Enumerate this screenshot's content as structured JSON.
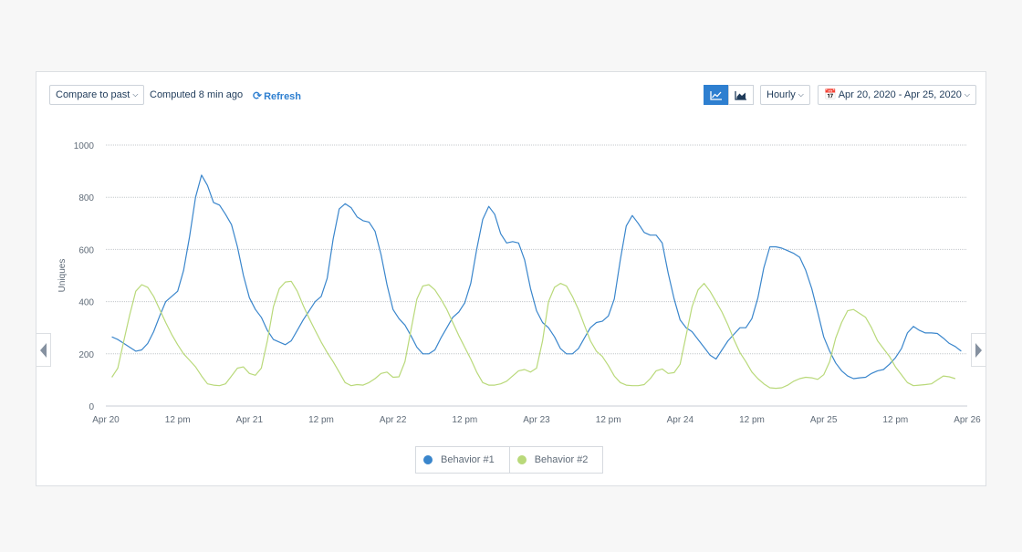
{
  "toolbar": {
    "compare_label": "Compare to past",
    "computed_text": "Computed 8 min ago",
    "refresh_label": "Refresh",
    "interval_label": "Hourly",
    "date_range_label": "Apr 20, 2020 - Apr 25, 2020",
    "active_view": "line",
    "accent_color": "#2e7fd0"
  },
  "icons": {
    "refresh": "refresh-icon",
    "line_chart": "line-chart-icon",
    "area_chart": "area-chart-icon",
    "calendar": "calendar-icon",
    "prev": "chevron-left-icon",
    "next": "chevron-right-icon"
  },
  "chart_data": {
    "type": "line",
    "ylabel": "Uniques",
    "ylim": [
      0,
      1000
    ],
    "yticks": [
      0,
      200,
      400,
      600,
      800,
      1000
    ],
    "x_range_hours": [
      0,
      144
    ],
    "x_tick_labels": [
      "Apr 20",
      "12 pm",
      "Apr 21",
      "12 pm",
      "Apr 22",
      "12 pm",
      "Apr 23",
      "12 pm",
      "Apr 24",
      "12 pm",
      "Apr 25",
      "12 pm",
      "Apr 26"
    ],
    "x_tick_hours": [
      0,
      12,
      24,
      36,
      48,
      60,
      72,
      84,
      96,
      108,
      120,
      132,
      144
    ],
    "grid": true,
    "legend_position": "bottom-center",
    "series": [
      {
        "name": "Behavior #1",
        "color": "#3a86cc",
        "points": [
          [
            1,
            265
          ],
          [
            2,
            255
          ],
          [
            3,
            240
          ],
          [
            4,
            225
          ],
          [
            5,
            210
          ],
          [
            6,
            215
          ],
          [
            7,
            240
          ],
          [
            8,
            285
          ],
          [
            9,
            345
          ],
          [
            10,
            400
          ],
          [
            11,
            420
          ],
          [
            12,
            440
          ],
          [
            13,
            520
          ],
          [
            14,
            650
          ],
          [
            15,
            800
          ],
          [
            16,
            885
          ],
          [
            17,
            845
          ],
          [
            18,
            780
          ],
          [
            19,
            770
          ],
          [
            20,
            735
          ],
          [
            21,
            695
          ],
          [
            22,
            610
          ],
          [
            23,
            500
          ],
          [
            24,
            415
          ],
          [
            25,
            370
          ],
          [
            26,
            340
          ],
          [
            27,
            290
          ],
          [
            28,
            255
          ],
          [
            29,
            245
          ],
          [
            30,
            235
          ],
          [
            31,
            250
          ],
          [
            32,
            290
          ],
          [
            33,
            330
          ],
          [
            34,
            365
          ],
          [
            35,
            400
          ],
          [
            36,
            420
          ],
          [
            37,
            490
          ],
          [
            38,
            640
          ],
          [
            39,
            755
          ],
          [
            40,
            775
          ],
          [
            41,
            760
          ],
          [
            42,
            725
          ],
          [
            43,
            710
          ],
          [
            44,
            705
          ],
          [
            45,
            670
          ],
          [
            46,
            580
          ],
          [
            47,
            465
          ],
          [
            48,
            370
          ],
          [
            49,
            335
          ],
          [
            50,
            310
          ],
          [
            51,
            270
          ],
          [
            52,
            225
          ],
          [
            53,
            200
          ],
          [
            54,
            200
          ],
          [
            55,
            215
          ],
          [
            56,
            260
          ],
          [
            57,
            300
          ],
          [
            58,
            340
          ],
          [
            59,
            360
          ],
          [
            60,
            395
          ],
          [
            61,
            470
          ],
          [
            62,
            600
          ],
          [
            63,
            715
          ],
          [
            64,
            765
          ],
          [
            65,
            735
          ],
          [
            66,
            660
          ],
          [
            67,
            625
          ],
          [
            68,
            630
          ],
          [
            69,
            625
          ],
          [
            70,
            560
          ],
          [
            71,
            450
          ],
          [
            72,
            365
          ],
          [
            73,
            320
          ],
          [
            74,
            300
          ],
          [
            75,
            265
          ],
          [
            76,
            220
          ],
          [
            77,
            200
          ],
          [
            78,
            200
          ],
          [
            79,
            220
          ],
          [
            80,
            260
          ],
          [
            81,
            300
          ],
          [
            82,
            320
          ],
          [
            83,
            325
          ],
          [
            84,
            345
          ],
          [
            85,
            410
          ],
          [
            86,
            560
          ],
          [
            87,
            690
          ],
          [
            88,
            730
          ],
          [
            89,
            700
          ],
          [
            90,
            665
          ],
          [
            91,
            655
          ],
          [
            92,
            655
          ],
          [
            93,
            625
          ],
          [
            94,
            510
          ],
          [
            95,
            410
          ],
          [
            96,
            330
          ],
          [
            97,
            300
          ],
          [
            98,
            285
          ],
          [
            99,
            255
          ],
          [
            100,
            225
          ],
          [
            101,
            195
          ],
          [
            102,
            180
          ],
          [
            103,
            215
          ],
          [
            104,
            250
          ],
          [
            105,
            275
          ],
          [
            106,
            300
          ],
          [
            107,
            300
          ],
          [
            108,
            335
          ],
          [
            109,
            415
          ],
          [
            110,
            530
          ],
          [
            111,
            610
          ],
          [
            112,
            610
          ],
          [
            113,
            605
          ],
          [
            114,
            595
          ],
          [
            115,
            585
          ],
          [
            116,
            570
          ],
          [
            117,
            520
          ],
          [
            118,
            450
          ],
          [
            119,
            360
          ],
          [
            120,
            265
          ],
          [
            121,
            210
          ],
          [
            122,
            165
          ],
          [
            123,
            135
          ],
          [
            124,
            115
          ],
          [
            125,
            105
          ],
          [
            126,
            108
          ],
          [
            127,
            110
          ],
          [
            128,
            125
          ],
          [
            129,
            135
          ],
          [
            130,
            140
          ],
          [
            131,
            160
          ],
          [
            132,
            185
          ],
          [
            133,
            220
          ],
          [
            134,
            280
          ],
          [
            135,
            305
          ],
          [
            136,
            290
          ],
          [
            137,
            280
          ],
          [
            138,
            280
          ],
          [
            139,
            278
          ],
          [
            140,
            260
          ],
          [
            141,
            240
          ],
          [
            142,
            228
          ],
          [
            143,
            210
          ]
        ]
      },
      {
        "name": "Behavior #2",
        "color": "#b9d97a",
        "points": [
          [
            1,
            110
          ],
          [
            2,
            145
          ],
          [
            3,
            250
          ],
          [
            4,
            350
          ],
          [
            5,
            440
          ],
          [
            6,
            465
          ],
          [
            7,
            455
          ],
          [
            8,
            420
          ],
          [
            9,
            370
          ],
          [
            10,
            320
          ],
          [
            11,
            275
          ],
          [
            12,
            235
          ],
          [
            13,
            200
          ],
          [
            14,
            175
          ],
          [
            15,
            150
          ],
          [
            16,
            115
          ],
          [
            17,
            85
          ],
          [
            18,
            80
          ],
          [
            19,
            78
          ],
          [
            20,
            85
          ],
          [
            21,
            115
          ],
          [
            22,
            145
          ],
          [
            23,
            150
          ],
          [
            24,
            125
          ],
          [
            25,
            118
          ],
          [
            26,
            145
          ],
          [
            27,
            250
          ],
          [
            28,
            380
          ],
          [
            29,
            450
          ],
          [
            30,
            475
          ],
          [
            31,
            478
          ],
          [
            32,
            440
          ],
          [
            33,
            385
          ],
          [
            34,
            335
          ],
          [
            35,
            290
          ],
          [
            36,
            245
          ],
          [
            37,
            205
          ],
          [
            38,
            170
          ],
          [
            39,
            130
          ],
          [
            40,
            90
          ],
          [
            41,
            78
          ],
          [
            42,
            82
          ],
          [
            43,
            80
          ],
          [
            44,
            90
          ],
          [
            45,
            105
          ],
          [
            46,
            125
          ],
          [
            47,
            130
          ],
          [
            48,
            110
          ],
          [
            49,
            112
          ],
          [
            50,
            170
          ],
          [
            51,
            290
          ],
          [
            52,
            410
          ],
          [
            53,
            460
          ],
          [
            54,
            465
          ],
          [
            55,
            445
          ],
          [
            56,
            410
          ],
          [
            57,
            370
          ],
          [
            58,
            320
          ],
          [
            59,
            270
          ],
          [
            60,
            225
          ],
          [
            61,
            180
          ],
          [
            62,
            130
          ],
          [
            63,
            90
          ],
          [
            64,
            80
          ],
          [
            65,
            80
          ],
          [
            66,
            85
          ],
          [
            67,
            95
          ],
          [
            68,
            115
          ],
          [
            69,
            135
          ],
          [
            70,
            140
          ],
          [
            71,
            130
          ],
          [
            72,
            145
          ],
          [
            73,
            250
          ],
          [
            74,
            400
          ],
          [
            75,
            455
          ],
          [
            76,
            470
          ],
          [
            77,
            460
          ],
          [
            78,
            420
          ],
          [
            79,
            370
          ],
          [
            80,
            310
          ],
          [
            81,
            250
          ],
          [
            82,
            210
          ],
          [
            83,
            190
          ],
          [
            84,
            155
          ],
          [
            85,
            115
          ],
          [
            86,
            90
          ],
          [
            87,
            80
          ],
          [
            88,
            78
          ],
          [
            89,
            78
          ],
          [
            90,
            82
          ],
          [
            91,
            105
          ],
          [
            92,
            135
          ],
          [
            93,
            142
          ],
          [
            94,
            125
          ],
          [
            95,
            128
          ],
          [
            96,
            160
          ],
          [
            97,
            270
          ],
          [
            98,
            380
          ],
          [
            99,
            445
          ],
          [
            100,
            470
          ],
          [
            101,
            440
          ],
          [
            102,
            400
          ],
          [
            103,
            360
          ],
          [
            104,
            310
          ],
          [
            105,
            255
          ],
          [
            106,
            205
          ],
          [
            107,
            170
          ],
          [
            108,
            130
          ],
          [
            109,
            105
          ],
          [
            110,
            85
          ],
          [
            111,
            70
          ],
          [
            112,
            68
          ],
          [
            113,
            70
          ],
          [
            114,
            80
          ],
          [
            115,
            95
          ],
          [
            116,
            105
          ],
          [
            117,
            110
          ],
          [
            118,
            108
          ],
          [
            119,
            102
          ],
          [
            120,
            120
          ],
          [
            121,
            170
          ],
          [
            122,
            260
          ],
          [
            123,
            320
          ],
          [
            124,
            365
          ],
          [
            125,
            370
          ],
          [
            126,
            355
          ],
          [
            127,
            340
          ],
          [
            128,
            300
          ],
          [
            129,
            250
          ],
          [
            130,
            220
          ],
          [
            131,
            190
          ],
          [
            132,
            150
          ],
          [
            133,
            120
          ],
          [
            134,
            90
          ],
          [
            135,
            78
          ],
          [
            136,
            80
          ],
          [
            137,
            82
          ],
          [
            138,
            85
          ],
          [
            139,
            100
          ],
          [
            140,
            115
          ],
          [
            141,
            112
          ],
          [
            142,
            105
          ]
        ]
      }
    ]
  }
}
